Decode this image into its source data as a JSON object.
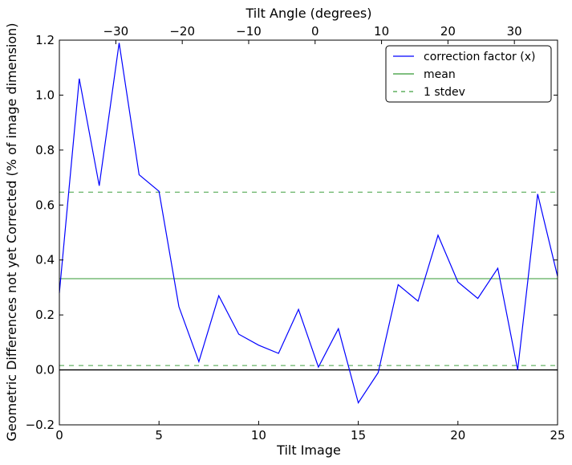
{
  "chart_data": {
    "type": "line",
    "xlabel": "Tilt Image",
    "ylabel": "Geometric Differences not yet Corrected (% of image dimension)",
    "top_xlabel": "Tilt Angle (degrees)",
    "xlim": [
      0,
      25
    ],
    "ylim": [
      -0.2,
      1.2
    ],
    "x_ticks": [
      0,
      5,
      10,
      15,
      20,
      25
    ],
    "x_tick_labels": [
      "0",
      "5",
      "10",
      "15",
      "20",
      "25"
    ],
    "y_ticks": [
      -0.2,
      0.0,
      0.2,
      0.4,
      0.6,
      0.8,
      1.0,
      1.2
    ],
    "y_tick_labels": [
      "−0.2",
      "0.0",
      "0.2",
      "0.4",
      "0.6",
      "0.8",
      "1.0",
      "1.2"
    ],
    "top_xlim": [
      -38.5,
      36.5
    ],
    "top_ticks": [
      -30,
      -20,
      -10,
      0,
      10,
      20,
      30
    ],
    "top_tick_labels": [
      "−30",
      "−20",
      "−10",
      "0",
      "10",
      "20",
      "30"
    ],
    "grid": false,
    "legend_position": "top-right",
    "series": [
      {
        "name": "correction factor (x)",
        "color": "#0000ff",
        "style": "solid",
        "x": [
          0,
          1,
          2,
          3,
          4,
          5,
          6,
          7,
          8,
          9,
          10,
          11,
          12,
          13,
          14,
          15,
          16,
          17,
          18,
          19,
          20,
          21,
          22,
          23,
          24,
          25
        ],
        "values": [
          0.28,
          1.06,
          0.67,
          1.19,
          0.71,
          0.65,
          0.23,
          0.03,
          0.27,
          0.13,
          0.09,
          0.06,
          0.22,
          0.01,
          0.15,
          -0.12,
          -0.01,
          0.31,
          0.25,
          0.49,
          0.32,
          0.26,
          0.37,
          0.0,
          0.64,
          0.34
        ]
      },
      {
        "name": "mean",
        "color": "#008000",
        "style": "solid",
        "x": [
          0,
          25
        ],
        "values": [
          0.332,
          0.332
        ]
      },
      {
        "name": "1 stdev",
        "color": "#008000",
        "style": "dashed",
        "x": [
          0,
          25
        ],
        "values": [
          0.647,
          0.647
        ],
        "lower_values": [
          0.016,
          0.016
        ]
      }
    ],
    "reference_lines": [
      {
        "y": 0.0,
        "color": "#000000"
      }
    ]
  }
}
